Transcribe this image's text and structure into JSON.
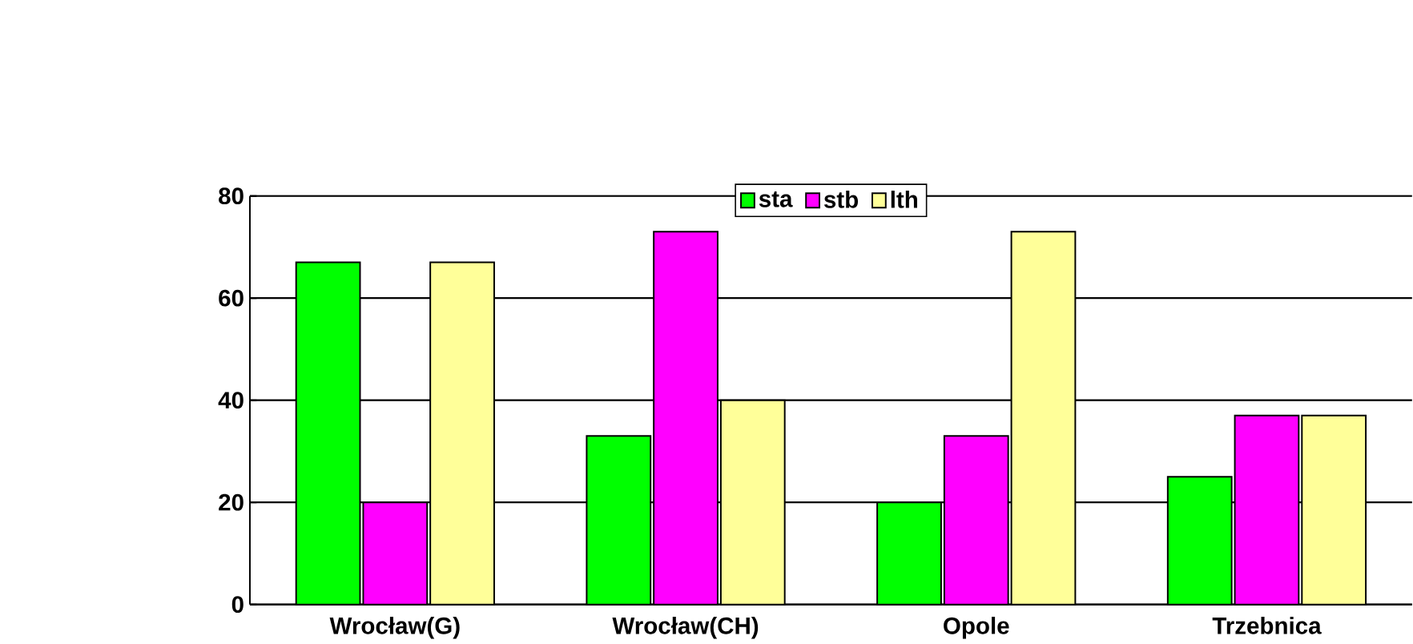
{
  "chart_data": {
    "type": "bar",
    "categories": [
      "Wrocław(G)",
      "Wrocław(CH)",
      "Opole",
      "Trzebnica"
    ],
    "series": [
      {
        "name": "sta",
        "color": "#00ff00",
        "values": [
          67,
          33,
          20,
          25
        ]
      },
      {
        "name": "stb",
        "color": "#ff00ff",
        "values": [
          20,
          73,
          33,
          37
        ]
      },
      {
        "name": "lth",
        "color": "#ffff99",
        "values": [
          67,
          40,
          73,
          37
        ]
      }
    ],
    "ylim": [
      0,
      80
    ],
    "yticks": [
      0,
      20,
      40,
      60,
      80
    ],
    "grid": "y",
    "legend": "top"
  }
}
